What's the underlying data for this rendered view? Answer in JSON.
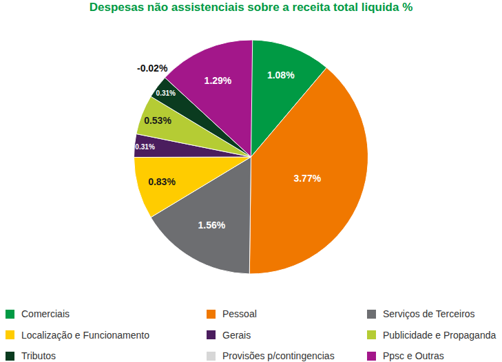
{
  "chart_data": {
    "type": "pie",
    "title": "Despesas não assistenciais sobre a receita total liquida %",
    "categories": [
      "Comerciais",
      "Pessoal",
      "Serviços de Terceiros",
      "Localização e Funcionamento",
      "Gerais",
      "Publicidade e Propaganda",
      "Tributos",
      "Provisões p/contingencias",
      "Ppsc e Outras"
    ],
    "values": [
      1.08,
      3.77,
      1.56,
      0.83,
      0.31,
      0.53,
      0.31,
      -0.02,
      1.29
    ],
    "value_labels": [
      "1.08%",
      "3.77%",
      "1.56%",
      "0.83%",
      "0.31%",
      "0.53%",
      "0.31%",
      "-0.02%",
      "1.29%"
    ],
    "colors": [
      "#009a44",
      "#f07800",
      "#6d6e71",
      "#ffcc00",
      "#4b1d5e",
      "#b5cc34",
      "#0a3b1f",
      "#d7d7d7",
      "#a3178a"
    ],
    "data_labels": true,
    "legend": "bottom"
  }
}
